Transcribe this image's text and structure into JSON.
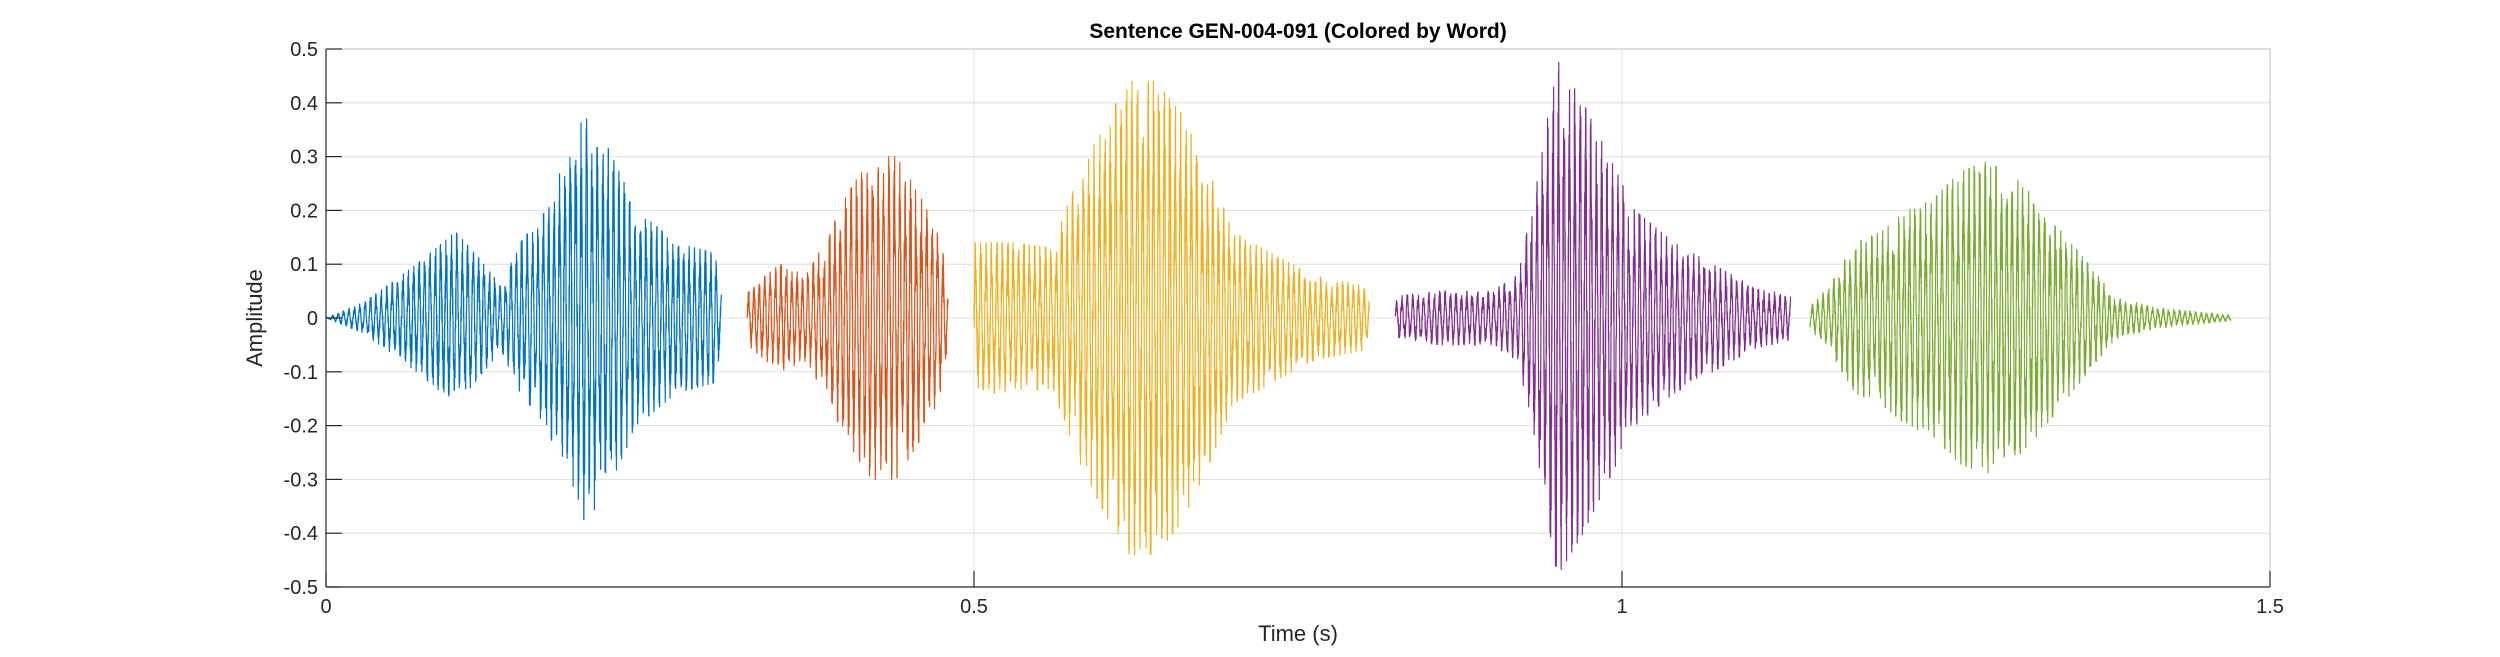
{
  "chart_data": {
    "type": "line",
    "title": "Sentence GEN-004-091 (Colored by Word)",
    "xlabel": "Time (s)",
    "ylabel": "Amplitude",
    "xlim": [
      0,
      1.5
    ],
    "ylim": [
      -0.5,
      0.5
    ],
    "xticks": [
      0,
      0.5,
      1,
      1.5
    ],
    "xtick_labels": [
      "0",
      "0.5",
      "1",
      "1.5"
    ],
    "yticks": [
      0.5,
      0.4,
      0.3,
      0.2,
      0.1,
      0,
      -0.1,
      -0.2,
      -0.3,
      -0.4,
      -0.5
    ],
    "ytick_labels": [
      "0.5",
      "0.4",
      "0.3",
      "0.2",
      "0.1",
      "0",
      "-0.1",
      "-0.2",
      "-0.3",
      "-0.4",
      "-0.5"
    ],
    "grid": true,
    "series": [
      {
        "color": "#0072BD",
        "start": 0.0,
        "end": 0.305,
        "envelope": [
          [
            0.0,
            0.0
          ],
          [
            0.03,
            0.03
          ],
          [
            0.07,
            0.1
          ],
          [
            0.1,
            0.16
          ],
          [
            0.115,
            0.12
          ],
          [
            0.135,
            0.06
          ],
          [
            0.15,
            0.14
          ],
          [
            0.17,
            0.2
          ],
          [
            0.185,
            0.3
          ],
          [
            0.2,
            0.38
          ],
          [
            0.215,
            0.33
          ],
          [
            0.24,
            0.2
          ],
          [
            0.27,
            0.14
          ],
          [
            0.3,
            0.12
          ],
          [
            0.305,
            0.05
          ]
        ]
      },
      {
        "color": "#D95319",
        "start": 0.325,
        "end": 0.48,
        "envelope": [
          [
            0.325,
            0.05
          ],
          [
            0.35,
            0.1
          ],
          [
            0.37,
            0.08
          ],
          [
            0.385,
            0.14
          ],
          [
            0.4,
            0.22
          ],
          [
            0.42,
            0.3
          ],
          [
            0.44,
            0.3
          ],
          [
            0.46,
            0.22
          ],
          [
            0.475,
            0.14
          ],
          [
            0.48,
            0.05
          ]
        ]
      },
      {
        "color": "#EDB120",
        "start": 0.5,
        "end": 0.805,
        "envelope": [
          [
            0.5,
            0.14
          ],
          [
            0.53,
            0.14
          ],
          [
            0.56,
            0.13
          ],
          [
            0.58,
            0.26
          ],
          [
            0.6,
            0.36
          ],
          [
            0.62,
            0.44
          ],
          [
            0.64,
            0.44
          ],
          [
            0.66,
            0.38
          ],
          [
            0.68,
            0.28
          ],
          [
            0.7,
            0.16
          ],
          [
            0.73,
            0.12
          ],
          [
            0.76,
            0.08
          ],
          [
            0.8,
            0.06
          ],
          [
            0.805,
            0.03
          ]
        ]
      },
      {
        "color": "#7E2F8E",
        "start": 0.825,
        "end": 1.13,
        "envelope": [
          [
            0.825,
            0.04
          ],
          [
            0.86,
            0.05
          ],
          [
            0.9,
            0.05
          ],
          [
            0.92,
            0.08
          ],
          [
            0.935,
            0.26
          ],
          [
            0.95,
            0.48
          ],
          [
            0.97,
            0.4
          ],
          [
            0.99,
            0.3
          ],
          [
            1.01,
            0.2
          ],
          [
            1.04,
            0.14
          ],
          [
            1.07,
            0.1
          ],
          [
            1.1,
            0.06
          ],
          [
            1.13,
            0.04
          ]
        ]
      },
      {
        "color": "#77AC30",
        "start": 1.145,
        "end": 1.47,
        "envelope": [
          [
            1.145,
            0.02
          ],
          [
            1.16,
            0.06
          ],
          [
            1.18,
            0.14
          ],
          [
            1.2,
            0.16
          ],
          [
            1.22,
            0.2
          ],
          [
            1.24,
            0.22
          ],
          [
            1.26,
            0.27
          ],
          [
            1.28,
            0.29
          ],
          [
            1.3,
            0.27
          ],
          [
            1.32,
            0.22
          ],
          [
            1.34,
            0.16
          ],
          [
            1.36,
            0.1
          ],
          [
            1.38,
            0.04
          ],
          [
            1.41,
            0.02
          ],
          [
            1.47,
            0.005
          ]
        ]
      }
    ]
  }
}
